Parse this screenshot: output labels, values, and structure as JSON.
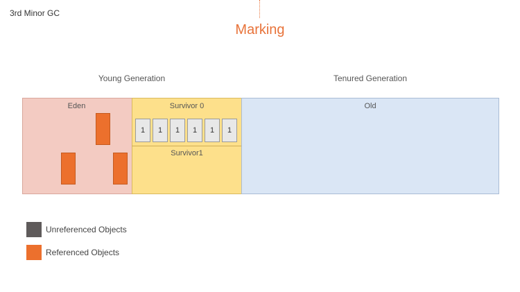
{
  "step_label": "3rd Minor GC",
  "phase_title": "Marking",
  "generations": {
    "young": "Young Generation",
    "tenured": "Tenured Generation"
  },
  "regions": {
    "eden": "Eden",
    "survivor0": "Survivor 0",
    "survivor1": "Survivor1",
    "old": "Old"
  },
  "survivor0_cells": [
    "1",
    "1",
    "1",
    "1",
    "1",
    "1"
  ],
  "legend": {
    "unreferenced": "Unreferenced Objects",
    "referenced": "Referenced Objects"
  },
  "colors": {
    "accent": "#e8733a",
    "eden": "#f3cbc2",
    "survivor": "#fde08b",
    "old": "#dae6f5",
    "referenced": "#ec702d",
    "unreferenced": "#5f5b5b"
  }
}
